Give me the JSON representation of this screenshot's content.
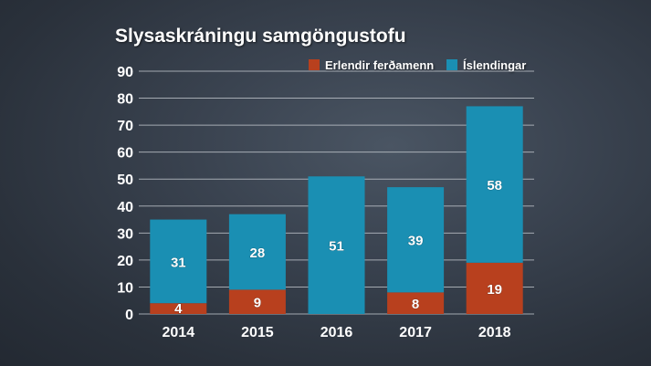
{
  "chart_data": {
    "type": "bar",
    "stacked": true,
    "title": "Slysaskráningu samgöngustofu",
    "xlabel": "",
    "ylabel": "",
    "categories": [
      "2014",
      "2015",
      "2016",
      "2017",
      "2018"
    ],
    "series": [
      {
        "name": "Erlendir ferðamenn",
        "color": "#b8401e",
        "values": [
          4,
          9,
          0,
          8,
          19
        ],
        "labels": [
          "4",
          "9",
          "",
          "8",
          "19"
        ]
      },
      {
        "name": "Íslendingar",
        "color": "#1a8fb3",
        "values": [
          31,
          28,
          51,
          39,
          58
        ],
        "labels": [
          "31",
          "28",
          "51",
          "39",
          "58"
        ]
      }
    ],
    "ylim": [
      0,
      90
    ],
    "yticks": [
      0,
      10,
      20,
      30,
      40,
      50,
      60,
      70,
      80,
      90
    ],
    "grid": true,
    "legend_position": "top-right"
  }
}
